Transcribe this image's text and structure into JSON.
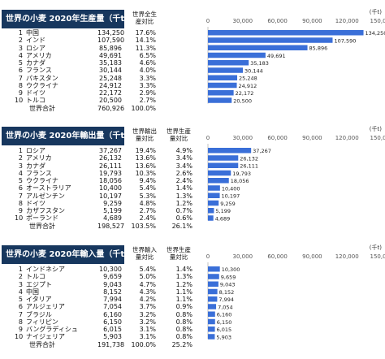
{
  "chart_data": [
    {
      "type": "table",
      "title": "世界の小麦 2020年生産量（千t）",
      "col1_header": "世界全生産対比",
      "unit": "(千t)",
      "axis_ticks": [
        "0",
        "30,000",
        "60,000",
        "90,000",
        "120,000",
        "150,000"
      ],
      "xlim": [
        0,
        150000
      ],
      "rows": [
        {
          "rank": "1",
          "name": "中国",
          "value": 134250,
          "value_text": "134,250",
          "pct1": "17.6%"
        },
        {
          "rank": "2",
          "name": "インド",
          "value": 107590,
          "value_text": "107,590",
          "pct1": "14.1%"
        },
        {
          "rank": "3",
          "name": "ロシア",
          "value": 85896,
          "value_text": "85,896",
          "pct1": "11.3%"
        },
        {
          "rank": "4",
          "name": "アメリカ",
          "value": 49691,
          "value_text": "49,691",
          "pct1": "6.5%"
        },
        {
          "rank": "5",
          "name": "カナダ",
          "value": 35183,
          "value_text": "35,183",
          "pct1": "4.6%"
        },
        {
          "rank": "6",
          "name": "フランス",
          "value": 30144,
          "value_text": "30,144",
          "pct1": "4.0%"
        },
        {
          "rank": "7",
          "name": "パキスタン",
          "value": 25248,
          "value_text": "25,248",
          "pct1": "3.3%"
        },
        {
          "rank": "8",
          "name": "ウクライナ",
          "value": 24912,
          "value_text": "24,912",
          "pct1": "3.3%"
        },
        {
          "rank": "9",
          "name": "ドイツ",
          "value": 22172,
          "value_text": "22,172",
          "pct1": "2.9%"
        },
        {
          "rank": "10",
          "name": "トルコ",
          "value": 20500,
          "value_text": "20,500",
          "pct1": "2.7%"
        }
      ],
      "total": {
        "name": "世界合計",
        "value_text": "760,926",
        "pct1": "100.0%"
      }
    },
    {
      "type": "table",
      "title": "世界の小麦 2020年輸出量（千t）",
      "col1_header": "世界輸出量対比",
      "col2_header": "世界生産量対比",
      "unit": "(千t)",
      "axis_ticks": [
        "0",
        "30,000",
        "60,000",
        "90,000",
        "120,000",
        "150,000"
      ],
      "xlim": [
        0,
        150000
      ],
      "rows": [
        {
          "rank": "1",
          "name": "ロシア",
          "value": 37267,
          "value_text": "37,267",
          "pct1": "19.4%",
          "pct2": "4.9%"
        },
        {
          "rank": "2",
          "name": "アメリカ",
          "value": 26132,
          "value_text": "26,132",
          "pct1": "13.6%",
          "pct2": "3.4%"
        },
        {
          "rank": "3",
          "name": "カナダ",
          "value": 26111,
          "value_text": "26,111",
          "pct1": "13.6%",
          "pct2": "3.4%"
        },
        {
          "rank": "4",
          "name": "フランス",
          "value": 19793,
          "value_text": "19,793",
          "pct1": "10.3%",
          "pct2": "2.6%"
        },
        {
          "rank": "5",
          "name": "ウクライナ",
          "value": 18056,
          "value_text": "18,056",
          "pct1": "9.4%",
          "pct2": "2.4%"
        },
        {
          "rank": "6",
          "name": "オーストラリア",
          "value": 10400,
          "value_text": "10,400",
          "pct1": "5.4%",
          "pct2": "1.4%"
        },
        {
          "rank": "7",
          "name": "アルゼンチン",
          "value": 10197,
          "value_text": "10,197",
          "pct1": "5.3%",
          "pct2": "1.3%"
        },
        {
          "rank": "8",
          "name": "ドイツ",
          "value": 9259,
          "value_text": "9,259",
          "pct1": "4.8%",
          "pct2": "1.2%"
        },
        {
          "rank": "9",
          "name": "カザフスタン",
          "value": 5199,
          "value_text": "5,199",
          "pct1": "2.7%",
          "pct2": "0.7%"
        },
        {
          "rank": "10",
          "name": "ポーランド",
          "value": 4689,
          "value_text": "4,689",
          "pct1": "2.4%",
          "pct2": "0.6%"
        }
      ],
      "total": {
        "name": "世界合計",
        "value_text": "198,527",
        "pct1": "103.5%",
        "pct2": "26.1%"
      }
    },
    {
      "type": "table",
      "title": "世界の小麦 2020年輸入量（千t）",
      "col1_header": "世界輸入量対比",
      "col2_header": "世界生産量対比",
      "unit": "(千t)",
      "axis_ticks": [
        "0",
        "30,000",
        "60,000",
        "90,000",
        "120,000",
        "150,000"
      ],
      "xlim": [
        0,
        150000
      ],
      "rows": [
        {
          "rank": "1",
          "name": "インドネシア",
          "value": 10300,
          "value_text": "10,300",
          "pct1": "5.4%",
          "pct2": "1.4%"
        },
        {
          "rank": "2",
          "name": "トルコ",
          "value": 9659,
          "value_text": "9,659",
          "pct1": "5.0%",
          "pct2": "1.3%"
        },
        {
          "rank": "3",
          "name": "エジプト",
          "value": 9043,
          "value_text": "9,043",
          "pct1": "4.7%",
          "pct2": "1.2%"
        },
        {
          "rank": "4",
          "name": "中国",
          "value": 8152,
          "value_text": "8,152",
          "pct1": "4.3%",
          "pct2": "1.1%"
        },
        {
          "rank": "5",
          "name": "イタリア",
          "value": 7994,
          "value_text": "7,994",
          "pct1": "4.2%",
          "pct2": "1.1%"
        },
        {
          "rank": "6",
          "name": "アルジェリア",
          "value": 7054,
          "value_text": "7,054",
          "pct1": "3.7%",
          "pct2": "0.9%"
        },
        {
          "rank": "7",
          "name": "ブラジル",
          "value": 6160,
          "value_text": "6,160",
          "pct1": "3.2%",
          "pct2": "0.8%"
        },
        {
          "rank": "8",
          "name": "フィリピン",
          "value": 6150,
          "value_text": "6,150",
          "pct1": "3.2%",
          "pct2": "0.8%"
        },
        {
          "rank": "9",
          "name": "バングラディシュ",
          "value": 6015,
          "value_text": "6,015",
          "pct1": "3.1%",
          "pct2": "0.8%"
        },
        {
          "rank": "10",
          "name": "ナイジェリア",
          "value": 5903,
          "value_text": "5,903",
          "pct1": "3.1%",
          "pct2": "0.8%"
        }
      ],
      "total": {
        "name": "世界合計",
        "value_text": "191,738",
        "pct1": "100.0%",
        "pct2": "25.2%"
      }
    }
  ],
  "colors": {
    "header_bg": "#17375e",
    "bar": "#3a6fd8"
  }
}
